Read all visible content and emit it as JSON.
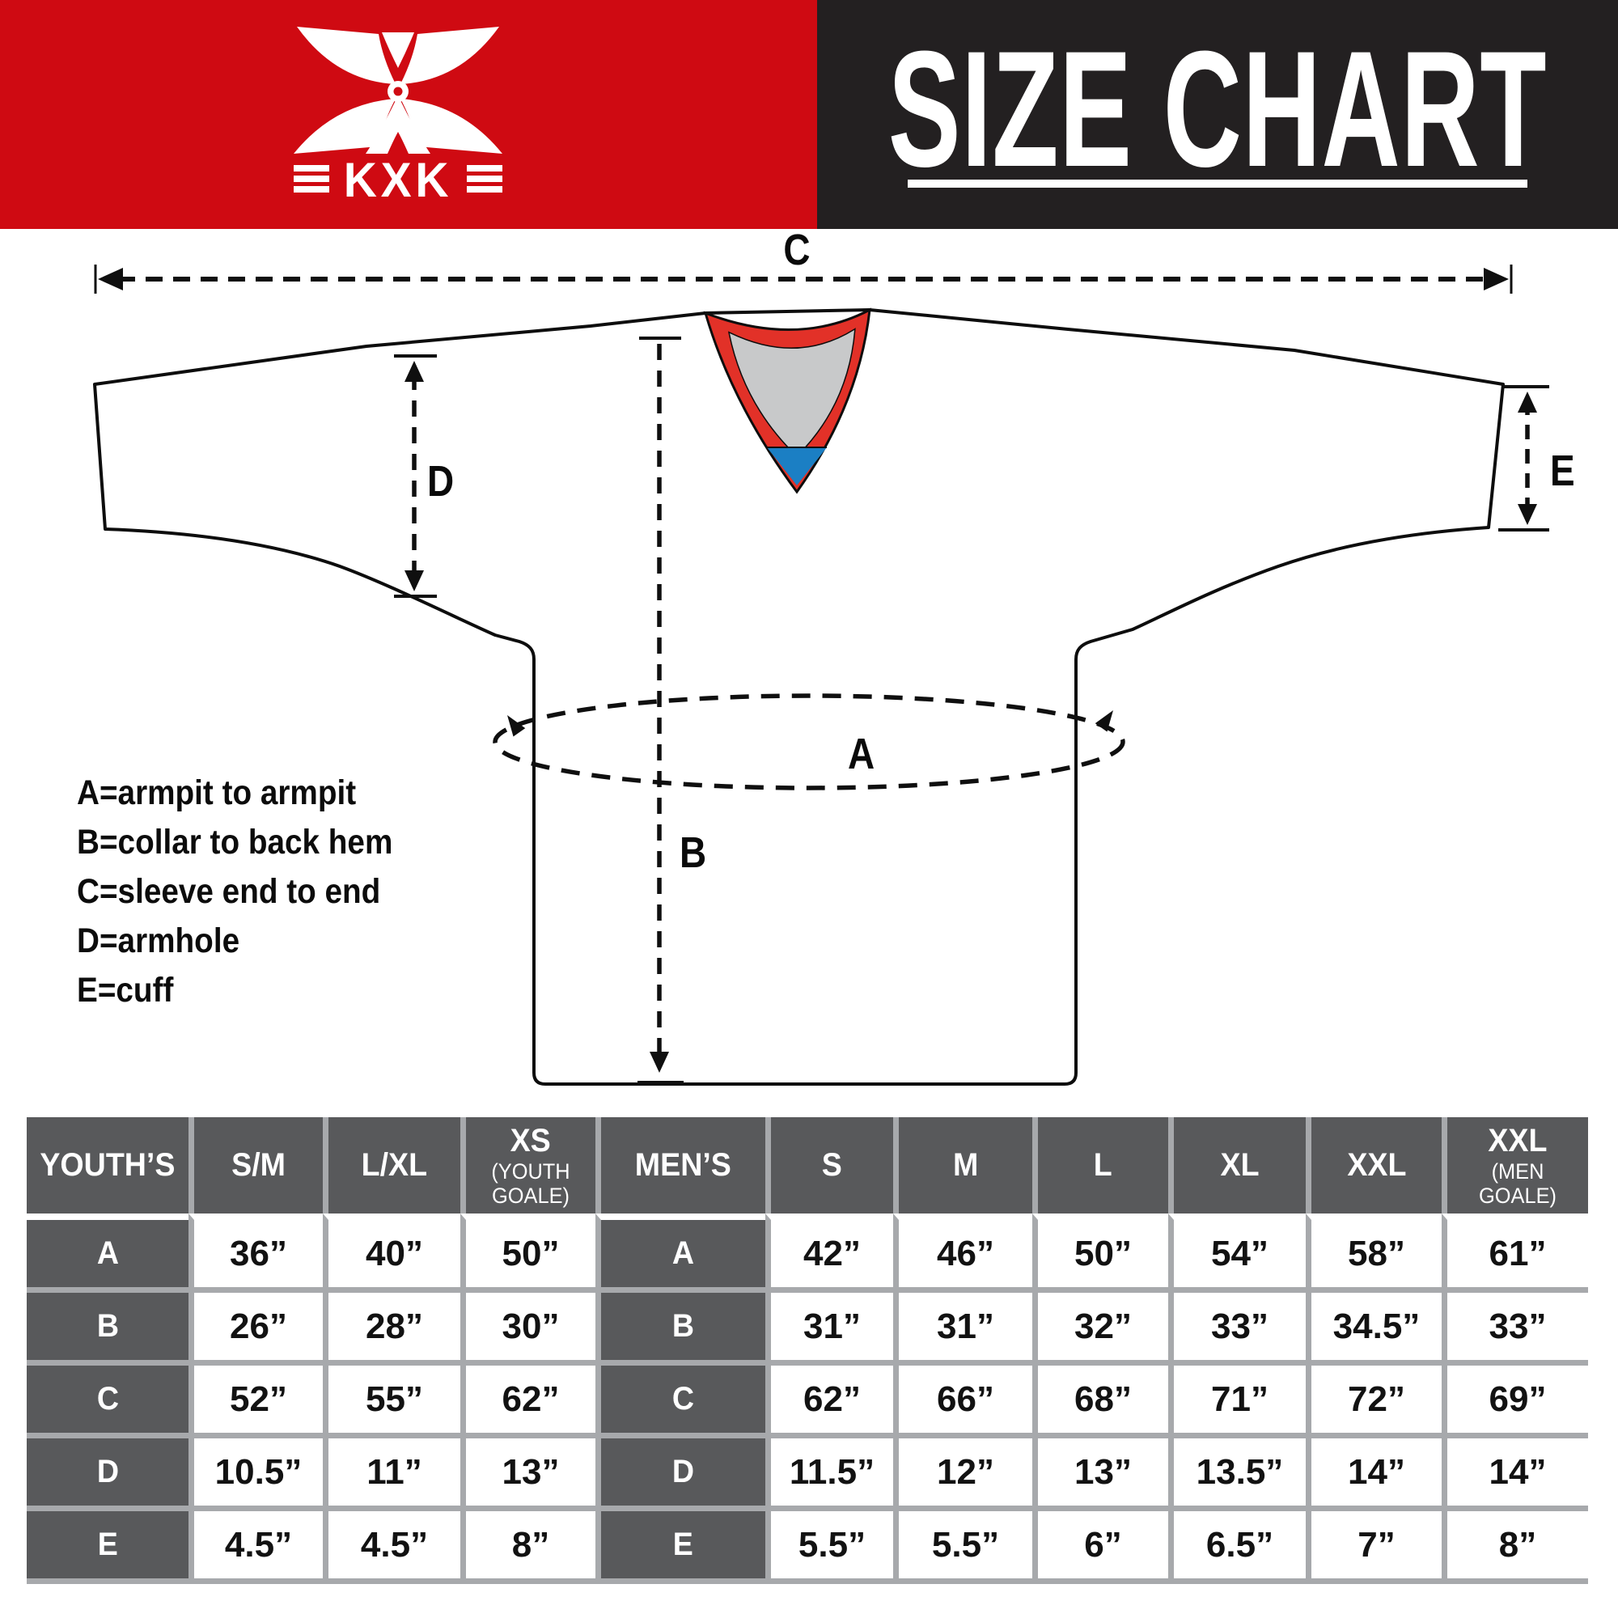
{
  "header": {
    "brand": "KXK",
    "title": "SIZE CHART"
  },
  "colors": {
    "brand_red": "#cf0a12",
    "header_dark": "#232021",
    "collar_red": "#e23128",
    "collar_inner": "#c8c9ca",
    "collar_blue": "#1b7fc4",
    "table_dark": "#58595b",
    "grid_gray": "#a7a9ac",
    "line_black": "#0f0f0f"
  },
  "diagram": {
    "measure_labels": {
      "a": "A",
      "b": "B",
      "c": "C",
      "d": "D",
      "e": "E"
    },
    "legend": [
      "A=armpit to armpit",
      "B=collar to back hem",
      "C=sleeve end to end",
      "D=armhole",
      "E=cuff"
    ]
  },
  "table": {
    "groups": [
      {
        "label": "YOUTH’S",
        "columns": [
          {
            "big": "S/M"
          },
          {
            "big": "L/XL"
          },
          {
            "big": "XS",
            "small": "(YOUTH GOALE)"
          }
        ],
        "rows": [
          {
            "label": "A",
            "values": [
              "36”",
              "40”",
              "50”"
            ]
          },
          {
            "label": "B",
            "values": [
              "26”",
              "28”",
              "30”"
            ]
          },
          {
            "label": "C",
            "values": [
              "52”",
              "55”",
              "62”"
            ]
          },
          {
            "label": "D",
            "values": [
              "10.5”",
              "11”",
              "13”"
            ]
          },
          {
            "label": "E",
            "values": [
              "4.5”",
              "4.5”",
              "8”"
            ]
          }
        ]
      },
      {
        "label": "MEN’S",
        "columns": [
          {
            "big": "S"
          },
          {
            "big": "M"
          },
          {
            "big": "L"
          },
          {
            "big": "XL"
          },
          {
            "big": "XXL"
          },
          {
            "big": "XXL",
            "small": "(MEN GOALE)"
          }
        ],
        "rows": [
          {
            "label": "A",
            "values": [
              "42”",
              "46”",
              "50”",
              "54”",
              "58”",
              "61”"
            ]
          },
          {
            "label": "B",
            "values": [
              "31”",
              "31”",
              "32”",
              "33”",
              "34.5”",
              "33”"
            ]
          },
          {
            "label": "C",
            "values": [
              "62”",
              "66”",
              "68”",
              "71”",
              "72”",
              "69”"
            ]
          },
          {
            "label": "D",
            "values": [
              "11.5”",
              "12”",
              "13”",
              "13.5”",
              "14”",
              "14”"
            ]
          },
          {
            "label": "E",
            "values": [
              "5.5”",
              "5.5”",
              "6”",
              "6.5”",
              "7”",
              "8”"
            ]
          }
        ]
      }
    ]
  }
}
